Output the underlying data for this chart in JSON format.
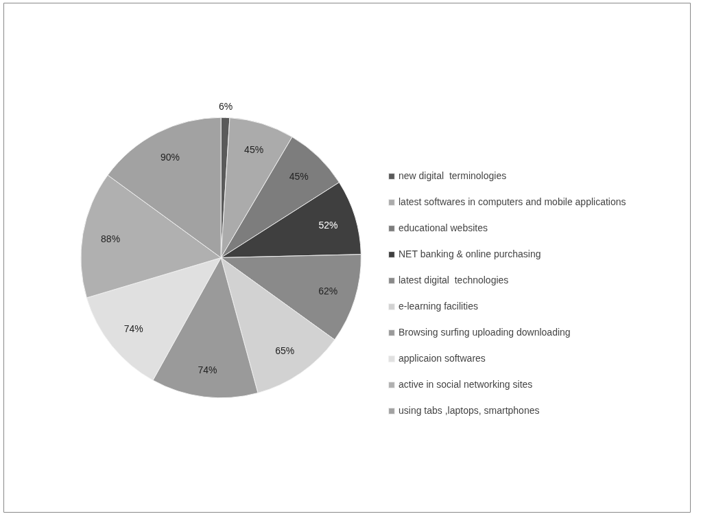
{
  "chart_data": {
    "type": "pie",
    "categories": [
      "new digital  terminologies",
      "latest softwares in computers and mobile applications",
      "educational websites",
      "NET banking & online purchasing",
      "latest digital  technologies",
      "e-learning facilities",
      "Browsing surfing uploading downloading",
      "applicaion softwares",
      "active in social networking sites",
      "using tabs ,laptops, smartphones"
    ],
    "values": [
      6,
      45,
      45,
      52,
      62,
      65,
      74,
      74,
      88,
      90
    ],
    "value_labels": [
      "6%",
      "45%",
      "45%",
      "52%",
      "62%",
      "65%",
      "74%",
      "74%",
      "88%",
      "90%"
    ],
    "colors": [
      "#5a5a5a",
      "#ababab",
      "#7d7d7d",
      "#3f3f3f",
      "#8a8a8a",
      "#d2d2d2",
      "#9a9a9a",
      "#e0e0e0",
      "#b0b0b0",
      "#a2a2a2"
    ],
    "legend": "right"
  }
}
